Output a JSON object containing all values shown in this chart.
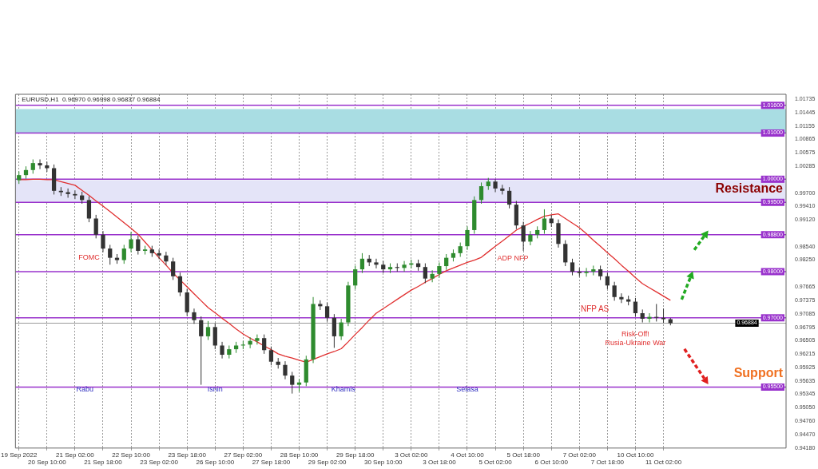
{
  "chart_data": {
    "type": "candlestick",
    "title": "EURUSD,H1  0.96970 0.96998 0.96837 0.96884",
    "categories": [
      "19 Sep 2022",
      null,
      null,
      null,
      "20 Sep 10:00",
      null,
      null,
      null,
      "21 Sep 02:00",
      null,
      null,
      null,
      "21 Sep 18:00",
      null,
      null,
      null,
      "22 Sep 10:00",
      null,
      null,
      null,
      "23 Sep 02:00",
      null,
      null,
      null,
      "23 Sep 18:00",
      null,
      null,
      null,
      "26 Sep 10:00",
      null,
      null,
      null,
      "27 Sep 02:00",
      null,
      null,
      null,
      "27 Sep 18:00",
      null,
      null,
      null,
      "28 Sep 10:00",
      null,
      null,
      null,
      "29 Sep 02:00",
      null,
      null,
      null,
      "29 Sep 18:00",
      null,
      null,
      null,
      "30 Sep 10:00",
      null,
      null,
      null,
      "3 Oct 02:00",
      null,
      null,
      null,
      "3 Oct 18:00",
      null,
      null,
      null,
      "4 Oct 10:00",
      null,
      null,
      null,
      "5 Oct 02:00",
      null,
      null,
      null,
      "5 Oct 18:00",
      null,
      null,
      null,
      "6 Oct 10:00",
      null,
      null,
      null,
      "7 Oct 02:00",
      null,
      null,
      null,
      "7 Oct 18:00",
      null,
      null,
      null,
      "10 Oct 10:00",
      null,
      null,
      null,
      "11 Oct 02:00",
      null,
      null,
      null,
      null,
      null,
      null,
      null,
      null,
      null,
      null,
      null,
      null,
      null,
      null,
      null,
      null,
      null
    ],
    "ohlc": [
      [
        0.9998,
        1.0017,
        0.999,
        1.0009
      ],
      [
        1.0009,
        1.0028,
        1.0001,
        1.002
      ],
      [
        1.002,
        1.0043,
        1.0012,
        1.0035
      ],
      [
        1.0035,
        1.0043,
        1.0022,
        1.003
      ],
      [
        1.003,
        1.0038,
        1.0016,
        1.0024
      ],
      [
        1.0024,
        1.0032,
        0.9967,
        0.9975
      ],
      [
        0.9975,
        0.9983,
        0.9964,
        0.9972
      ],
      [
        0.9972,
        0.998,
        0.996,
        0.9968
      ],
      [
        0.9968,
        0.9976,
        0.9957,
        0.9965
      ],
      [
        0.9965,
        0.9973,
        0.9947,
        0.9955
      ],
      [
        0.9955,
        0.9963,
        0.9907,
        0.9915
      ],
      [
        0.9915,
        0.9923,
        0.9872,
        0.988
      ],
      [
        0.988,
        0.9888,
        0.9842,
        0.985
      ],
      [
        0.985,
        0.9858,
        0.9815,
        0.983
      ],
      [
        0.983,
        0.9838,
        0.9817,
        0.9825
      ],
      [
        0.9825,
        0.9858,
        0.9817,
        0.985
      ],
      [
        0.985,
        0.9886,
        0.9842,
        0.987
      ],
      [
        0.987,
        0.9878,
        0.9837,
        0.9845
      ],
      [
        0.9845,
        0.9856,
        0.9837,
        0.9848
      ],
      [
        0.9848,
        0.9856,
        0.9832,
        0.984
      ],
      [
        0.984,
        0.9848,
        0.9827,
        0.9835
      ],
      [
        0.9835,
        0.9843,
        0.9814,
        0.9822
      ],
      [
        0.9822,
        0.983,
        0.9782,
        0.979
      ],
      [
        0.979,
        0.9798,
        0.9747,
        0.9755
      ],
      [
        0.9755,
        0.9763,
        0.9704,
        0.9712
      ],
      [
        0.9712,
        0.972,
        0.9687,
        0.9695
      ],
      [
        0.9695,
        0.9703,
        0.9555,
        0.966
      ],
      [
        0.966,
        0.9693,
        0.9652,
        0.968
      ],
      [
        0.968,
        0.9688,
        0.9632,
        0.964
      ],
      [
        0.964,
        0.9648,
        0.9612,
        0.962
      ],
      [
        0.962,
        0.964,
        0.9612,
        0.9632
      ],
      [
        0.9632,
        0.9648,
        0.9624,
        0.964
      ],
      [
        0.964,
        0.965,
        0.9632,
        0.9642
      ],
      [
        0.9642,
        0.9658,
        0.9634,
        0.965
      ],
      [
        0.965,
        0.9664,
        0.9642,
        0.9656
      ],
      [
        0.9656,
        0.9664,
        0.9622,
        0.963
      ],
      [
        0.963,
        0.9638,
        0.9597,
        0.9605
      ],
      [
        0.9605,
        0.9613,
        0.959,
        0.9598
      ],
      [
        0.9598,
        0.9606,
        0.9567,
        0.9575
      ],
      [
        0.9575,
        0.9583,
        0.9536,
        0.9555
      ],
      [
        0.9555,
        0.9568,
        0.954,
        0.956
      ],
      [
        0.956,
        0.9618,
        0.9552,
        0.961
      ],
      [
        0.961,
        0.9745,
        0.9602,
        0.973
      ],
      [
        0.973,
        0.9738,
        0.9717,
        0.9725
      ],
      [
        0.9725,
        0.9733,
        0.9692,
        0.97
      ],
      [
        0.97,
        0.9708,
        0.9635,
        0.966
      ],
      [
        0.966,
        0.9698,
        0.9652,
        0.969
      ],
      [
        0.969,
        0.9778,
        0.9682,
        0.977
      ],
      [
        0.977,
        0.9813,
        0.9762,
        0.9805
      ],
      [
        0.9805,
        0.984,
        0.9797,
        0.9828
      ],
      [
        0.9828,
        0.9836,
        0.9812,
        0.982
      ],
      [
        0.982,
        0.9828,
        0.9807,
        0.9815
      ],
      [
        0.9815,
        0.9823,
        0.9797,
        0.9805
      ],
      [
        0.9805,
        0.9818,
        0.9797,
        0.981
      ],
      [
        0.981,
        0.9818,
        0.98,
        0.9808
      ],
      [
        0.9808,
        0.9823,
        0.98,
        0.9815
      ],
      [
        0.9815,
        0.9826,
        0.9807,
        0.9818
      ],
      [
        0.9818,
        0.9826,
        0.9802,
        0.981
      ],
      [
        0.981,
        0.9818,
        0.9775,
        0.9785
      ],
      [
        0.9785,
        0.9803,
        0.9777,
        0.9795
      ],
      [
        0.9795,
        0.982,
        0.9787,
        0.9812
      ],
      [
        0.9812,
        0.9838,
        0.9804,
        0.983
      ],
      [
        0.983,
        0.9848,
        0.9822,
        0.984
      ],
      [
        0.984,
        0.9863,
        0.9832,
        0.9855
      ],
      [
        0.9855,
        0.9898,
        0.9847,
        0.989
      ],
      [
        0.989,
        0.9963,
        0.9882,
        0.9955
      ],
      [
        0.9955,
        0.9993,
        0.9947,
        0.9985
      ],
      [
        0.9985,
        1.0003,
        0.9977,
        0.9995
      ],
      [
        0.9995,
        1.0,
        0.9972,
        0.998
      ],
      [
        0.998,
        0.9988,
        0.9967,
        0.9975
      ],
      [
        0.9975,
        0.9983,
        0.9937,
        0.9945
      ],
      [
        0.9945,
        0.9953,
        0.9892,
        0.99
      ],
      [
        0.99,
        0.9908,
        0.9845,
        0.9865
      ],
      [
        0.9865,
        0.9888,
        0.9857,
        0.988
      ],
      [
        0.988,
        0.9898,
        0.9872,
        0.989
      ],
      [
        0.989,
        0.9935,
        0.9882,
        0.9915
      ],
      [
        0.9915,
        0.9923,
        0.9897,
        0.9905
      ],
      [
        0.9905,
        0.9913,
        0.9852,
        0.986
      ],
      [
        0.986,
        0.9868,
        0.9812,
        0.982
      ],
      [
        0.982,
        0.9828,
        0.9792,
        0.98
      ],
      [
        0.98,
        0.9808,
        0.9789,
        0.9797
      ],
      [
        0.9797,
        0.9808,
        0.9789,
        0.98
      ],
      [
        0.98,
        0.9813,
        0.9792,
        0.9805
      ],
      [
        0.9805,
        0.9813,
        0.9782,
        0.979
      ],
      [
        0.979,
        0.9798,
        0.9762,
        0.977
      ],
      [
        0.977,
        0.9778,
        0.9737,
        0.9745
      ],
      [
        0.9745,
        0.9753,
        0.9732,
        0.974
      ],
      [
        0.974,
        0.9748,
        0.9727,
        0.9735
      ],
      [
        0.9735,
        0.9743,
        0.9702,
        0.971
      ],
      [
        0.971,
        0.9718,
        0.969,
        0.9698
      ],
      [
        0.9698,
        0.971,
        0.969,
        0.9702
      ],
      [
        0.9702,
        0.973,
        0.9692,
        0.97
      ],
      [
        0.97,
        0.972,
        0.9689,
        0.9697
      ],
      [
        0.9697,
        0.96998,
        0.96837,
        0.96884
      ],
      null,
      null,
      null,
      null,
      null,
      null,
      null,
      null,
      null,
      null,
      null,
      null,
      null,
      null,
      null,
      null
    ],
    "colors": [
      "#2e8b2e",
      "#2e8b2e",
      "#2e8b2e",
      "#333333",
      "#333333",
      "#333333",
      "#333333",
      "#333333",
      "#333333",
      "#333333",
      "#333333",
      "#333333",
      "#333333",
      "#333333",
      "#333333",
      "#2e8b2e",
      "#2e8b2e",
      "#333333",
      "#2e8b2e",
      "#333333",
      "#333333",
      "#333333",
      "#333333",
      "#333333",
      "#333333",
      "#333333",
      "#333333",
      "#2e8b2e",
      "#333333",
      "#333333",
      "#2e8b2e",
      "#2e8b2e",
      "#2e8b2e",
      "#2e8b2e",
      "#2e8b2e",
      "#333333",
      "#333333",
      "#333333",
      "#333333",
      "#333333",
      "#2e8b2e",
      "#2e8b2e",
      "#2e8b2e",
      "#333333",
      "#333333",
      "#333333",
      "#2e8b2e",
      "#2e8b2e",
      "#2e8b2e",
      "#2e8b2e",
      "#333333",
      "#333333",
      "#333333",
      "#2e8b2e",
      "#333333",
      "#2e8b2e",
      "#2e8b2e",
      "#333333",
      "#333333",
      "#2e8b2e",
      "#2e8b2e",
      "#2e8b2e",
      "#2e8b2e",
      "#2e8b2e",
      "#2e8b2e",
      "#2e8b2e",
      "#2e8b2e",
      "#2e8b2e",
      "#333333",
      "#333333",
      "#333333",
      "#333333",
      "#333333",
      "#2e8b2e",
      "#2e8b2e",
      "#2e8b2e",
      "#333333",
      "#333333",
      "#333333",
      "#333333",
      "#333333",
      "#2e8b2e",
      "#2e8b2e",
      "#333333",
      "#333333",
      "#333333",
      "#333333",
      "#333333",
      "#333333",
      "#333333",
      "#2e8b2e",
      "#333333",
      "#333333",
      "#333333",
      null,
      null,
      null,
      null,
      null,
      null,
      null,
      null,
      null,
      null,
      null,
      null,
      null,
      null,
      null,
      null
    ],
    "series": [
      {
        "type": "line",
        "color": "#e03030",
        "values": [
          0.9999,
          0.9999,
          1.0,
          1.0,
          0.9999,
          0.9999,
          0.9995,
          0.9991,
          0.9987,
          0.9976,
          0.9965,
          0.9953,
          0.9942,
          0.993,
          0.9918,
          0.9906,
          0.9894,
          0.9881,
          0.9864,
          0.9847,
          0.983,
          0.9814,
          0.9797,
          0.9782,
          0.9767,
          0.9752,
          0.9737,
          0.9722,
          0.9711,
          0.9699,
          0.9688,
          0.9676,
          0.9665,
          0.9656,
          0.9648,
          0.9639,
          0.9631,
          0.9622,
          0.9617,
          0.9613,
          0.9608,
          0.9604,
          0.961,
          0.9616,
          0.9622,
          0.9627,
          0.9633,
          0.9648,
          0.9664,
          0.9679,
          0.9695,
          0.971,
          0.972,
          0.973,
          0.974,
          0.975,
          0.976,
          0.9768,
          0.9777,
          0.9785,
          0.9794,
          0.9802,
          0.9808,
          0.9814,
          0.982,
          0.9825,
          0.9831,
          0.9843,
          0.9855,
          0.9866,
          0.9878,
          0.989,
          0.9898,
          0.9905,
          0.9913,
          0.992,
          0.9923,
          0.9925,
          0.9915,
          0.9905,
          0.9895,
          0.9882,
          0.9868,
          0.9855,
          0.9841,
          0.9828,
          0.9814,
          0.9801,
          0.9787,
          0.9774,
          0.9765,
          0.9756,
          0.9747,
          0.9738,
          null,
          null,
          null,
          null,
          null,
          null,
          null,
          null,
          null,
          null,
          null,
          null,
          null,
          null,
          null,
          null
        ]
      }
    ],
    "ylim": [
      0.9418,
      1.0184
    ],
    "yticks": [
      {
        "value": 1.01735,
        "label": "1.01735"
      },
      {
        "value": 1.01445,
        "label": "1.01445"
      },
      {
        "value": 1.01155,
        "label": "1.01155"
      },
      {
        "value": 1.00865,
        "label": "1.00865"
      },
      {
        "value": 1.00575,
        "label": "1.00575"
      },
      {
        "value": 1.00285,
        "label": "1.00285"
      },
      {
        "value": 0.997,
        "label": "0.99700"
      },
      {
        "value": 0.9941,
        "label": "0.99410"
      },
      {
        "value": 0.9912,
        "label": "0.99120"
      },
      {
        "value": 0.9854,
        "label": "0.98540"
      },
      {
        "value": 0.9825,
        "label": "0.98250"
      },
      {
        "value": 0.97665,
        "label": "0.97665"
      },
      {
        "value": 0.97375,
        "label": "0.97375"
      },
      {
        "value": 0.97085,
        "label": "0.97085"
      },
      {
        "value": 0.96795,
        "label": "0.96795"
      },
      {
        "value": 0.96505,
        "label": "0.96505"
      },
      {
        "value": 0.96215,
        "label": "0.96215"
      },
      {
        "value": 0.95925,
        "label": "0.95925"
      },
      {
        "value": 0.95635,
        "label": "0.95635"
      },
      {
        "value": 0.95345,
        "label": "0.95345"
      },
      {
        "value": 0.9505,
        "label": "0.95050"
      },
      {
        "value": 0.9476,
        "label": "0.94760"
      },
      {
        "value": 0.9447,
        "label": "0.94470"
      },
      {
        "value": 0.9418,
        "label": "0.94180"
      }
    ],
    "grid": "x",
    "bands": [
      {
        "axis": "y",
        "from": 1.0101,
        "to": 1.0152,
        "color": "#a9dde3"
      },
      {
        "axis": "y",
        "from": 0.9951,
        "to": 0.9998,
        "color": "#e4e4f8"
      }
    ],
    "ref_lines": [
      {
        "axis": "y",
        "value": 1.016,
        "label": "1.01600",
        "color": "#9932cc"
      },
      {
        "axis": "y",
        "value": 1.01,
        "label": "1.01000",
        "color": "#9932cc"
      },
      {
        "axis": "y",
        "value": 1.0,
        "label": "1.00000",
        "color": "#9932cc"
      },
      {
        "axis": "y",
        "value": 0.995,
        "label": "0.99500",
        "color": "#9932cc"
      },
      {
        "axis": "y",
        "value": 0.988,
        "label": "0.98800",
        "color": "#9932cc"
      },
      {
        "axis": "y",
        "value": 0.98,
        "label": "0.98000",
        "color": "#9932cc"
      },
      {
        "axis": "y",
        "value": 0.97,
        "label": "0.97000",
        "color": "#9932cc"
      },
      {
        "axis": "y",
        "value": 0.955,
        "label": "0.95500",
        "color": "#9932cc"
      },
      {
        "axis": "y",
        "value": 0.96884,
        "label": "0.96884",
        "color": "#000000"
      }
    ],
    "annotations": [
      "FOMC",
      "ADP NFP",
      "NFP AS",
      "Risk-Off!\nRusia-Ukraine War",
      "Rabu",
      "Isnin",
      "Khamis",
      "Selasa",
      "Resistance",
      "Support"
    ]
  }
}
